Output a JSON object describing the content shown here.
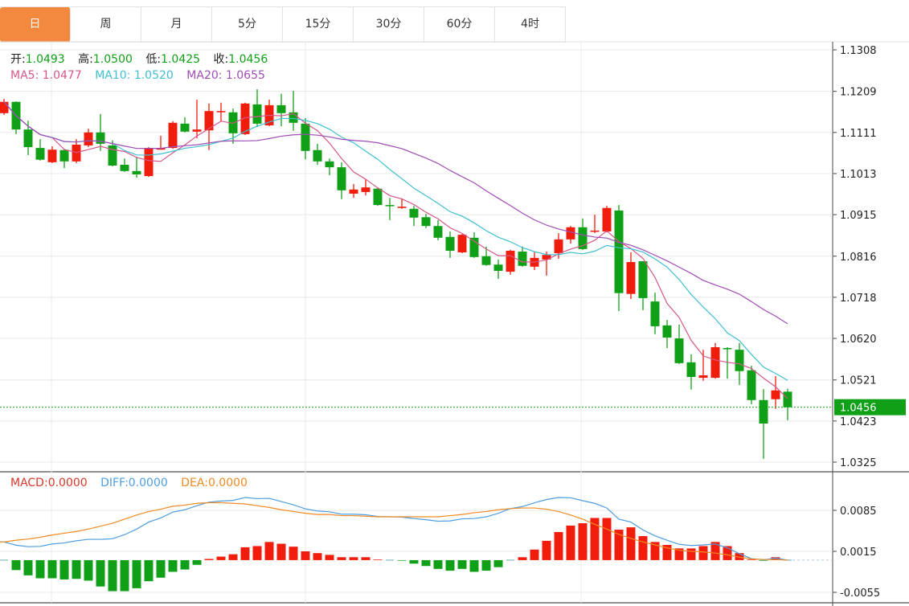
{
  "tabs": [
    {
      "label": "日",
      "active": true
    },
    {
      "label": "周",
      "active": false
    },
    {
      "label": "月",
      "active": false
    },
    {
      "label": "5分",
      "active": false
    },
    {
      "label": "15分",
      "active": false
    },
    {
      "label": "30分",
      "active": false
    },
    {
      "label": "60分",
      "active": false
    },
    {
      "label": "4时",
      "active": false
    }
  ],
  "ohlc_legend": [
    {
      "label": "开:",
      "value": "1.0493"
    },
    {
      "label": "高:",
      "value": "1.0500"
    },
    {
      "label": "低:",
      "value": "1.0425"
    },
    {
      "label": "收:",
      "value": "1.0456"
    }
  ],
  "ma_legend": [
    {
      "label": "MA5:",
      "value": "1.0477",
      "color": "#d6568a"
    },
    {
      "label": "MA10:",
      "value": "1.0520",
      "color": "#3fbfd0"
    },
    {
      "label": "MA20:",
      "value": "1.0655",
      "color": "#a04cb5"
    }
  ],
  "macd_legend": [
    {
      "label": "MACD:",
      "value": "0.0000",
      "color": "#d9362b"
    },
    {
      "label": "DIFF:",
      "value": "0.0000",
      "color": "#4d9de0"
    },
    {
      "label": "DEA:",
      "value": "0.0000",
      "color": "#f08a24"
    }
  ],
  "colors": {
    "up": "#f01c0c",
    "down": "#10a018",
    "tab_active": "#f3883f",
    "last_price_bg": "#10a018",
    "grid": "#e8e8e8"
  },
  "chart_data": [
    {
      "type": "candlestick",
      "ylim": [
        1.0325,
        1.1308
      ],
      "y_ticks": [
        "1.1308",
        "1.1209",
        "1.1111",
        "1.1013",
        "1.0915",
        "1.0816",
        "1.0718",
        "1.0620",
        "1.0521",
        "1.0423",
        "1.0325"
      ],
      "last_price": "1.0456",
      "grid": true,
      "moving_averages": [
        5,
        10,
        20
      ],
      "ohlc": [
        [
          1.1157,
          1.1191,
          1.1153,
          1.1184
        ],
        [
          1.1184,
          1.1185,
          1.1107,
          1.1118
        ],
        [
          1.1118,
          1.1139,
          1.1057,
          1.1076
        ],
        [
          1.1074,
          1.1095,
          1.1044,
          1.1046
        ],
        [
          1.104,
          1.1078,
          1.1038,
          1.107
        ],
        [
          1.1069,
          1.1072,
          1.1026,
          1.1042
        ],
        [
          1.1042,
          1.1095,
          1.1038,
          1.1082
        ],
        [
          1.108,
          1.112,
          1.1076,
          1.1111
        ],
        [
          1.1111,
          1.1155,
          1.1067,
          1.1084
        ],
        [
          1.108,
          1.1092,
          1.103,
          1.1032
        ],
        [
          1.1034,
          1.1049,
          1.1017,
          1.1019
        ],
        [
          1.1019,
          1.1053,
          1.1003,
          1.1011
        ],
        [
          1.1007,
          1.1076,
          1.1005,
          1.1074
        ],
        [
          1.107,
          1.1103,
          1.107,
          1.1074
        ],
        [
          1.1074,
          1.1138,
          1.1072,
          1.1134
        ],
        [
          1.1132,
          1.1147,
          1.1111,
          1.1113
        ],
        [
          1.1113,
          1.1189,
          1.1097,
          1.1118
        ],
        [
          1.1116,
          1.118,
          1.1069,
          1.1162
        ],
        [
          1.1161,
          1.1182,
          1.1138,
          1.1162
        ],
        [
          1.1159,
          1.1168,
          1.1084,
          1.1109
        ],
        [
          1.1107,
          1.1182,
          1.1105,
          1.118
        ],
        [
          1.1178,
          1.1214,
          1.1124,
          1.1132
        ],
        [
          1.1128,
          1.1189,
          1.1126,
          1.1176
        ],
        [
          1.1176,
          1.1203,
          1.1126,
          1.1157
        ],
        [
          1.1159,
          1.121,
          1.1115,
          1.1134
        ],
        [
          1.1132,
          1.1145,
          1.1047,
          1.1067
        ],
        [
          1.1069,
          1.1084,
          1.1034,
          1.1042
        ],
        [
          1.1042,
          1.1049,
          1.1009,
          1.1028
        ],
        [
          1.1028,
          1.104,
          1.0952,
          1.0973
        ],
        [
          1.0965,
          1.0988,
          1.0955,
          1.0975
        ],
        [
          1.0969,
          1.0999,
          1.0961,
          1.098
        ],
        [
          1.0977,
          1.098,
          1.0936,
          1.0938
        ],
        [
          1.0938,
          1.0955,
          1.0902,
          1.0936
        ],
        [
          1.0931,
          1.0954,
          1.0929,
          1.0934
        ],
        [
          1.0929,
          1.0936,
          1.0888,
          1.0908
        ],
        [
          1.0909,
          1.0917,
          1.0883,
          1.0888
        ],
        [
          1.0888,
          1.0902,
          1.0854,
          1.086
        ],
        [
          1.0862,
          1.0875,
          1.0812,
          1.0829
        ],
        [
          1.0825,
          1.0869,
          1.0823,
          1.0867
        ],
        [
          1.086,
          1.0873,
          1.0812,
          1.0814
        ],
        [
          1.0816,
          1.0839,
          1.0793,
          1.0795
        ],
        [
          1.0796,
          1.0808,
          1.0762,
          1.0781
        ],
        [
          1.0779,
          1.0831,
          1.0772,
          1.0829
        ],
        [
          1.0827,
          1.0839,
          1.0791,
          1.0793
        ],
        [
          1.0791,
          1.0827,
          1.0783,
          1.0812
        ],
        [
          1.0808,
          1.0827,
          1.077,
          1.0819
        ],
        [
          1.0823,
          1.0871,
          1.081,
          1.0856
        ],
        [
          1.0856,
          1.0888,
          1.0846,
          1.0885
        ],
        [
          1.0885,
          1.0906,
          1.0831,
          1.0833
        ],
        [
          1.0875,
          1.0915,
          1.0871,
          1.0877
        ],
        [
          1.0875,
          1.0936,
          1.0873,
          1.0931
        ],
        [
          1.0925,
          1.0938,
          1.0685,
          1.0728
        ],
        [
          1.0726,
          1.0825,
          1.0714,
          1.0802
        ],
        [
          1.0804,
          1.0804,
          1.0687,
          1.0716
        ],
        [
          1.0708,
          1.0729,
          1.063,
          1.0649
        ],
        [
          1.0651,
          1.0664,
          1.0597,
          1.0622
        ],
        [
          1.062,
          1.0653,
          1.0559,
          1.0561
        ],
        [
          1.0563,
          1.0582,
          1.0498,
          1.0528
        ],
        [
          1.0526,
          1.0593,
          1.0519,
          1.0532
        ],
        [
          1.0526,
          1.0609,
          1.0524,
          1.0599
        ],
        [
          1.0597,
          1.0599,
          1.0524,
          1.0595
        ],
        [
          1.0593,
          1.0609,
          1.0509,
          1.0542
        ],
        [
          1.0544,
          1.0555,
          1.0463,
          1.0473
        ],
        [
          1.0473,
          1.0499,
          1.0333,
          1.0417
        ],
        [
          1.0475,
          1.053,
          1.0452,
          1.0496
        ],
        [
          1.0493,
          1.05,
          1.0425,
          1.0456
        ]
      ]
    },
    {
      "type": "macd",
      "ylim": [
        -0.0055,
        0.0085
      ],
      "y_ticks": [
        "0.0085",
        "0.0015",
        "-0.0055"
      ],
      "macd": [
        0.0,
        -0.0017,
        -0.0026,
        -0.0031,
        -0.0031,
        -0.0033,
        -0.0032,
        -0.0035,
        -0.0045,
        -0.0053,
        -0.0053,
        -0.0048,
        -0.0036,
        -0.003,
        -0.002,
        -0.0016,
        -0.0008,
        0.0002,
        0.0006,
        0.001,
        0.0022,
        0.0024,
        0.0031,
        0.0028,
        0.0023,
        0.0015,
        0.0012,
        0.0009,
        0.0005,
        0.0005,
        0.0005,
        0.0001,
        0.0,
        -0.0001,
        -0.0006,
        -0.001,
        -0.0015,
        -0.0018,
        -0.0015,
        -0.002,
        -0.0018,
        -0.0012,
        0.0,
        0.0005,
        0.0018,
        0.0033,
        0.0048,
        0.0059,
        0.0063,
        0.0072,
        0.0072,
        0.0052,
        0.0056,
        0.0041,
        0.0031,
        0.0026,
        0.002,
        0.002,
        0.0024,
        0.0031,
        0.0024,
        0.0012,
        0.0001,
        -0.0001,
        0.0005,
        0.0
      ],
      "dea": [
        0.0031,
        0.0034,
        0.0036,
        0.0039,
        0.0043,
        0.0046,
        0.0049,
        0.0053,
        0.0058,
        0.0063,
        0.007,
        0.0077,
        0.0083,
        0.0087,
        0.0092,
        0.0094,
        0.0097,
        0.0098,
        0.0098,
        0.0097,
        0.0096,
        0.0093,
        0.009,
        0.0086,
        0.0083,
        0.008,
        0.0078,
        0.0078,
        0.0076,
        0.0076,
        0.0075,
        0.0074,
        0.0074,
        0.0074,
        0.0074,
        0.0074,
        0.0074,
        0.0076,
        0.0078,
        0.0081,
        0.0083,
        0.0086,
        0.0088,
        0.0089,
        0.0089,
        0.0087,
        0.0083,
        0.0077,
        0.007,
        0.0061,
        0.0053,
        0.0044,
        0.0037,
        0.0031,
        0.0026,
        0.0021,
        0.0017,
        0.0015,
        0.0014,
        0.0012,
        0.0009,
        0.0005,
        0.0002,
        0.0001,
        0.0001,
        0.0
      ]
    }
  ]
}
